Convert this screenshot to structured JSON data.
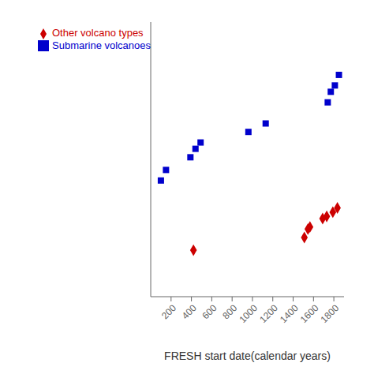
{
  "chart_data": {
    "type": "scatter",
    "x_label": "FRESH start date(calendar years)",
    "series": [
      {
        "name": "Submarine volcanoes",
        "color": "#0000cc",
        "marker": "square",
        "x": [
          100,
          150,
          390,
          440,
          490,
          960,
          1130,
          1740,
          1770,
          1810,
          1850
        ],
        "values": [
          55,
          60,
          66,
          70,
          73,
          78,
          82,
          92,
          97,
          100,
          105
        ]
      },
      {
        "name": "Other volcano types",
        "color": "#cc0000",
        "marker": "diamond",
        "x": [
          420,
          1510,
          1545,
          1565,
          1690,
          1730,
          1790,
          1835
        ],
        "values": [
          22,
          28,
          32,
          33,
          37,
          38,
          40,
          42
        ]
      }
    ],
    "xlim": [
      0,
      1900
    ],
    "ylim": [
      0,
      130
    ],
    "xticks": [
      200,
      400,
      600,
      800,
      1000,
      1200,
      1400,
      1600,
      1800
    ],
    "legend": "upper left",
    "tick_labels": "x",
    "grid": false
  }
}
